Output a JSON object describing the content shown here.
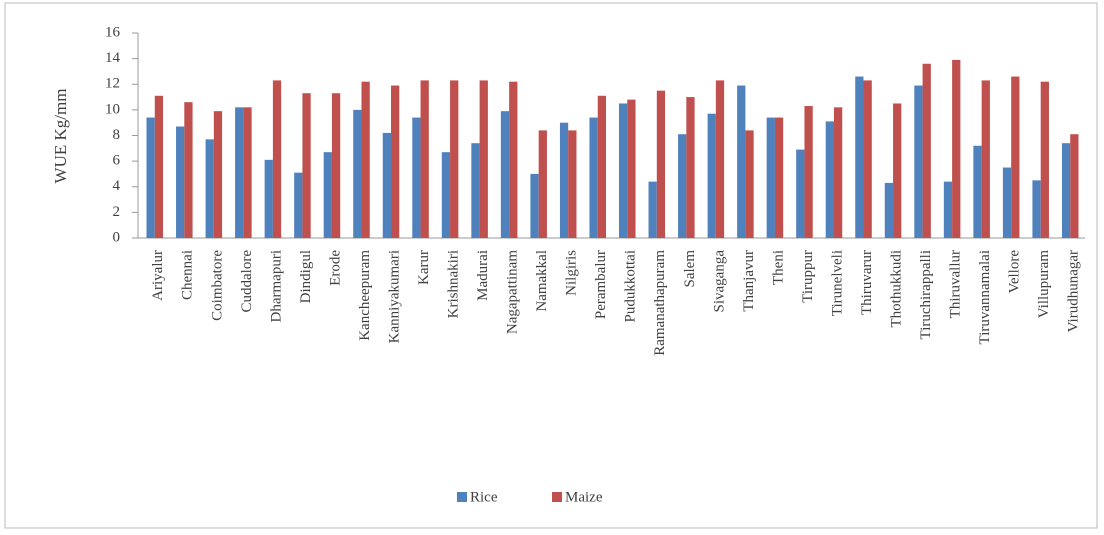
{
  "chart_data": {
    "type": "bar",
    "y_label": "WUE Kg/mm",
    "categories": [
      "Ariyalur",
      "Chennai",
      "Coimbatore",
      "Cuddalore",
      "Dharmapuri",
      "Dindigul",
      "Erode",
      "Kancheepuram",
      "Kanniyakumari",
      "Karur",
      "Krishnakiri",
      "Madurai",
      "Nagapattinam",
      "Namakkal",
      "Nilgiris",
      "Perambalur",
      "Pudukkottai",
      "Ramanathapuram",
      "Salem",
      "Sivaganga",
      "Thanjavur",
      "Theni",
      "Tiruppur",
      "Tirunelveli",
      "Thiruvarur",
      "Thothukkudi",
      "Tiruchirappalli",
      "Thiruvallur",
      "Tiruvannamalai",
      "Vellore",
      "Villupuram",
      "Virudhunagar"
    ],
    "series": [
      {
        "name": "Rice",
        "color": "#4f81bd",
        "values": [
          9.4,
          8.7,
          7.7,
          10.2,
          6.1,
          5.1,
          6.7,
          10.0,
          8.2,
          9.4,
          6.7,
          7.4,
          9.9,
          5.0,
          9.0,
          9.4,
          10.5,
          4.4,
          8.1,
          9.7,
          11.9,
          9.4,
          6.9,
          9.1,
          12.6,
          4.3,
          11.9,
          4.4,
          7.2,
          5.5,
          4.5,
          7.4
        ]
      },
      {
        "name": "Maize",
        "color": "#c0504d",
        "values": [
          11.1,
          10.6,
          9.9,
          10.2,
          12.3,
          11.3,
          11.3,
          12.2,
          11.9,
          12.3,
          12.3,
          12.3,
          12.2,
          8.4,
          8.4,
          11.1,
          10.8,
          11.5,
          11.0,
          12.3,
          8.4,
          9.4,
          10.3,
          10.2,
          12.3,
          10.5,
          13.6,
          13.9,
          12.3,
          12.6,
          12.2,
          8.1
        ]
      }
    ],
    "ylim": [
      0,
      16
    ],
    "yticks": [
      0,
      2,
      4,
      6,
      8,
      10,
      12,
      14,
      16
    ],
    "legend": "bottom"
  }
}
